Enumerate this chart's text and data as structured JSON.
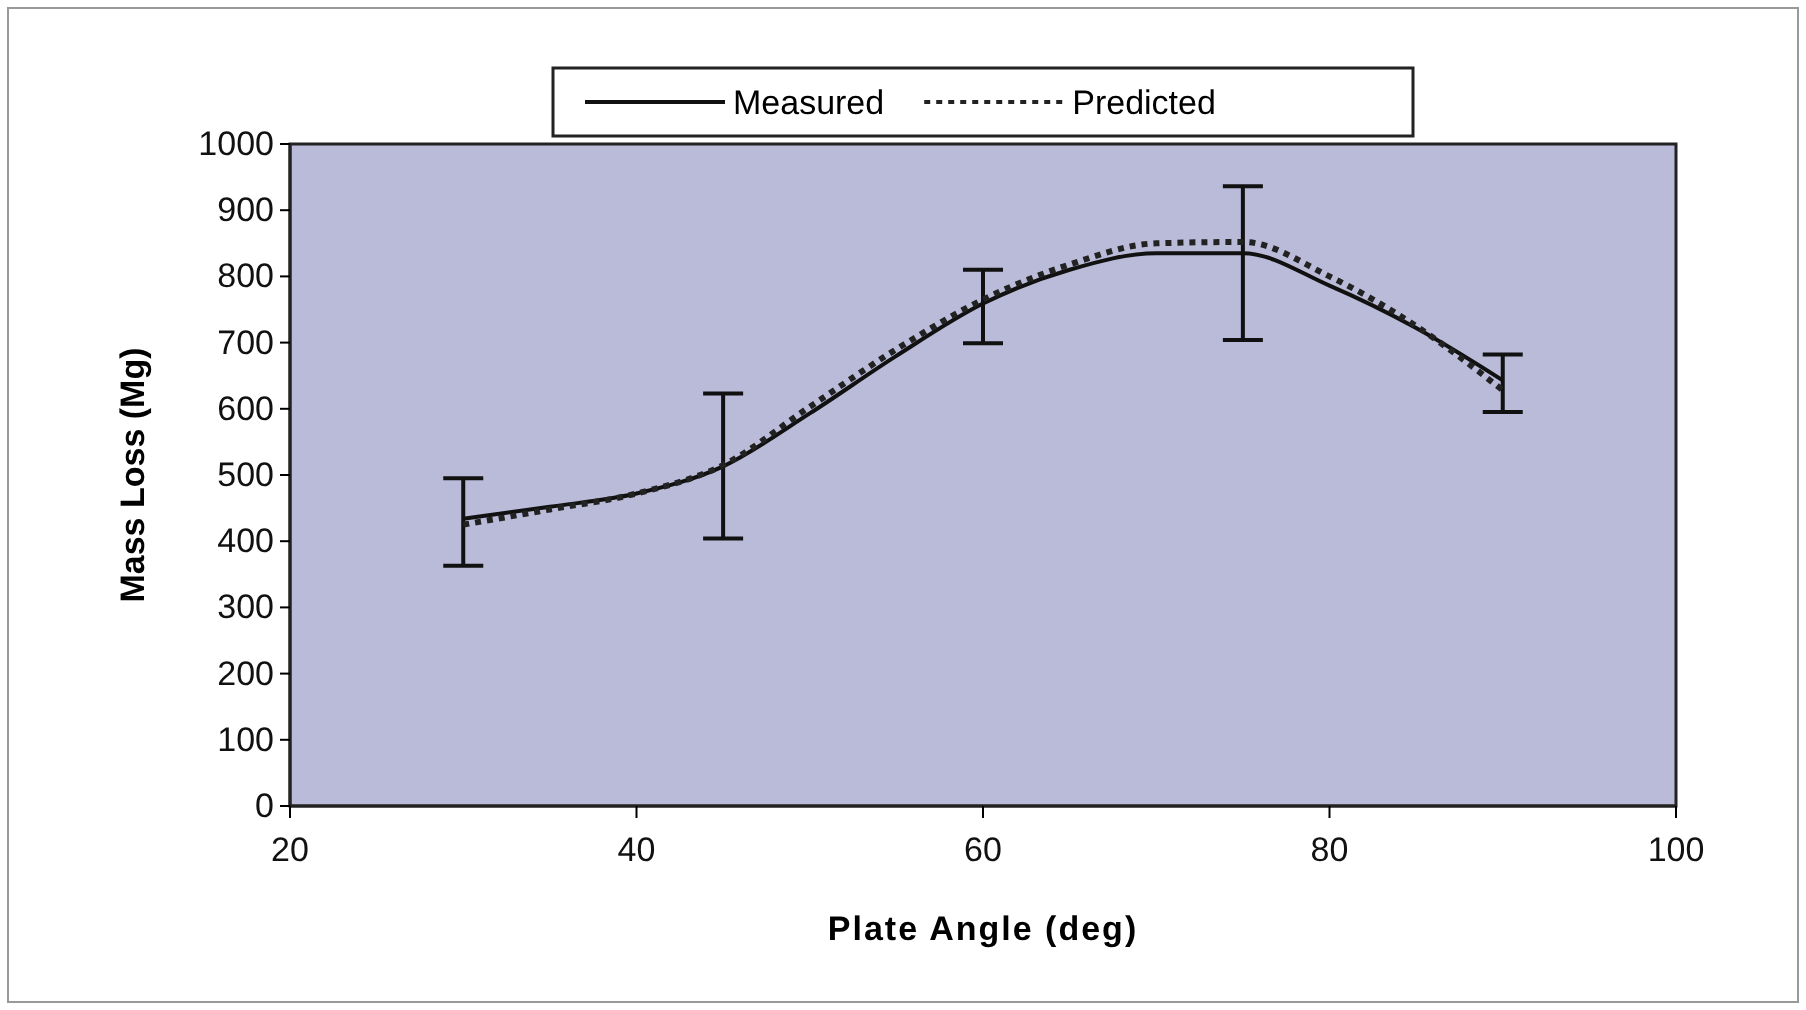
{
  "chart_data": {
    "type": "line",
    "xlabel": "Plate Angle (deg)",
    "ylabel": "Mass Loss (Mg)",
    "x": [
      30,
      35,
      40,
      45,
      50,
      55,
      60,
      65,
      70,
      75,
      80,
      85,
      90
    ],
    "series": [
      {
        "name": "Measured",
        "color": "#111111",
        "line_style": "solid",
        "values": [
          434,
          452,
          472,
          513,
          593,
          680,
          759,
          810,
          835,
          835,
          786,
          722,
          643
        ],
        "errors": [
          [
            363,
            495
          ],
          null,
          null,
          [
            404,
            623
          ],
          null,
          null,
          [
            699,
            810
          ],
          null,
          null,
          [
            704,
            936
          ],
          null,
          null,
          [
            595,
            682
          ]
        ]
      },
      {
        "name": "Predicted",
        "color": "#222222",
        "line_style": "dotted",
        "values": [
          425,
          448,
          472,
          515,
          603,
          690,
          765,
          818,
          850,
          852,
          800,
          725,
          628
        ]
      }
    ],
    "xlim": [
      20,
      100
    ],
    "xticks": [
      20,
      40,
      60,
      80,
      100
    ],
    "ylim": [
      0,
      1000
    ],
    "yticks": [
      0,
      100,
      200,
      300,
      400,
      500,
      600,
      700,
      800,
      900,
      1000
    ],
    "grid": false,
    "legend": "top",
    "marker": "none"
  }
}
